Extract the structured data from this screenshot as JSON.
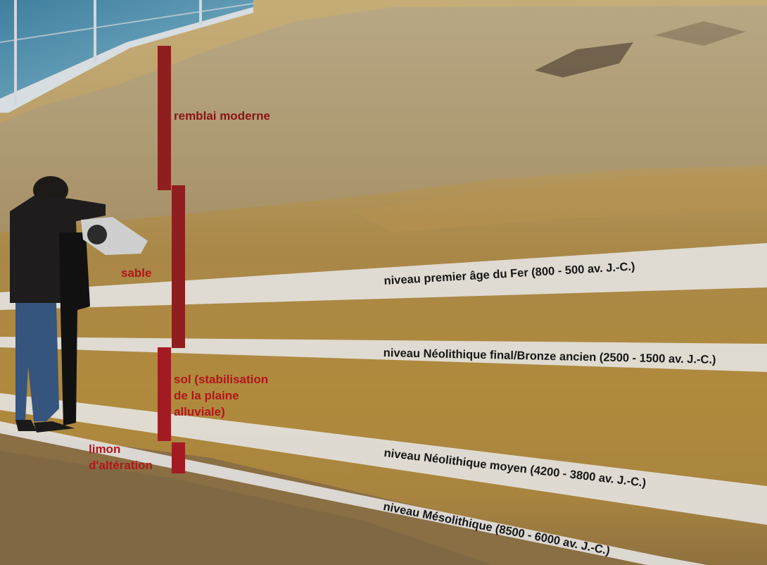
{
  "colors": {
    "layer_bar": "#8f1f1f",
    "layer_text": "#b0161c",
    "layer_text_dark": "#8a1318",
    "band_fill": "#e4e4e4",
    "band_text": "#161616"
  },
  "layers": [
    {
      "id": "remblai",
      "label": "remblai moderne"
    },
    {
      "id": "sable",
      "label": "sable"
    },
    {
      "id": "sol",
      "label_lines": [
        "sol (stabilisation",
        "de la plaine",
        "alluviale)"
      ]
    },
    {
      "id": "limon",
      "label_lines": [
        "limon",
        "d'altération"
      ]
    }
  ],
  "levels": [
    {
      "id": "fer",
      "label": "niveau premier âge du Fer (800 - 500 av. J.-C.)"
    },
    {
      "id": "neo-final",
      "label": "niveau Néolithique final/Bronze ancien (2500 - 1500 av. J.-C.)"
    },
    {
      "id": "neo-moyen",
      "label": "niveau Néolithique moyen (4200 - 3800 av. J.-C.)"
    },
    {
      "id": "meso",
      "label": "niveau Mésolithique (8500 - 6000 av. J.-C.)"
    }
  ]
}
